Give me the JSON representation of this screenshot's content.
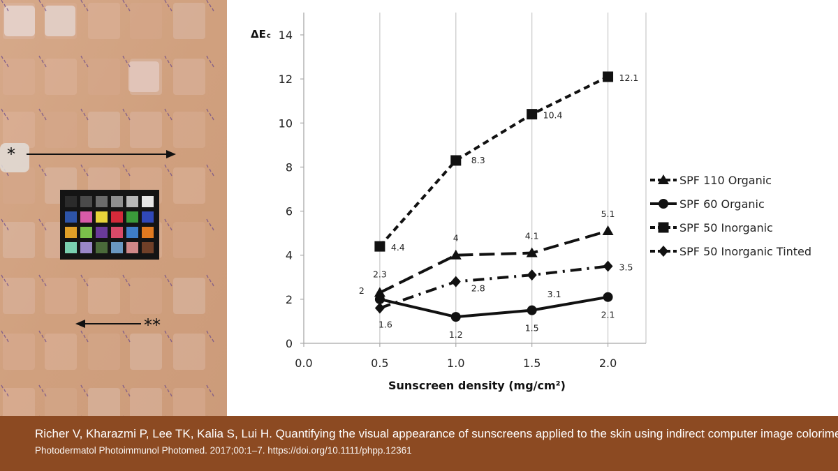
{
  "photo": {
    "marker_single": "*",
    "marker_double": "**",
    "checker_colors": [
      "#2b2b2b",
      "#4a4a4a",
      "#6b6b6b",
      "#8f8f8f",
      "#b7b7b7",
      "#e6e6e6",
      "#2d54a8",
      "#d85ba8",
      "#e8d43a",
      "#d42a3a",
      "#3a9a3a",
      "#3048b8",
      "#e0a028",
      "#7ac24a",
      "#6a3a9a",
      "#d84a68",
      "#3e7ec8",
      "#e07a20",
      "#7ad0b0",
      "#9a88c8",
      "#4a6a3a",
      "#6a98c0",
      "#d08888",
      "#704028"
    ]
  },
  "chart_data": {
    "type": "line",
    "ylabel_main": "ΔE",
    "ylabel_sub": "c",
    "xlabel": "Sunscreen density (mg/cm²)",
    "x_ticks": [
      "0.0",
      "0.5",
      "1.0",
      "1.5",
      "2.0"
    ],
    "y_ticks": [
      "0",
      "2",
      "4",
      "6",
      "8",
      "10",
      "12",
      "14"
    ],
    "xlim": [
      0,
      2.25
    ],
    "ylim": [
      0,
      14
    ],
    "x": [
      0.5,
      1.0,
      1.5,
      2.0
    ],
    "series": [
      {
        "name": "SPF 110 Organic",
        "marker": "triangle",
        "dash": "long",
        "values": [
          2.3,
          4.0,
          4.1,
          5.1
        ],
        "labels": [
          "2.3",
          "4",
          "4.1",
          "5.1"
        ]
      },
      {
        "name": "SPF 60 Organic",
        "marker": "circle",
        "dash": "solid",
        "values": [
          2.0,
          1.2,
          1.5,
          2.1
        ],
        "labels": [
          "2",
          "1.2",
          "1.5",
          "2.1"
        ]
      },
      {
        "name": "SPF 50 Inorganic",
        "marker": "square",
        "dash": "short",
        "values": [
          4.4,
          8.3,
          10.4,
          12.1
        ],
        "labels": [
          "4.4",
          "8.3",
          "10.4",
          "12.1"
        ]
      },
      {
        "name": "SPF 50 Inorganic Tinted",
        "marker": "diamond",
        "dash": "dashdot",
        "values": [
          1.6,
          2.8,
          3.1,
          3.5
        ],
        "labels": [
          "1.6",
          "2.8",
          "3.1",
          "3.5"
        ]
      }
    ],
    "legend_position": "right",
    "grid": "vertical"
  },
  "footer": {
    "citation_main": "Richer V, Kharazmi P, Lee TK, Kalia S, Lui H. Quantifying the visual appearance of sunscreens applied to the skin using indirect computer image colorimetry.",
    "citation_sub": "Photodermatol Photoimmunol Photomed. 2017;00:1–7. https://doi.org/10.1111/phpp.12361"
  }
}
